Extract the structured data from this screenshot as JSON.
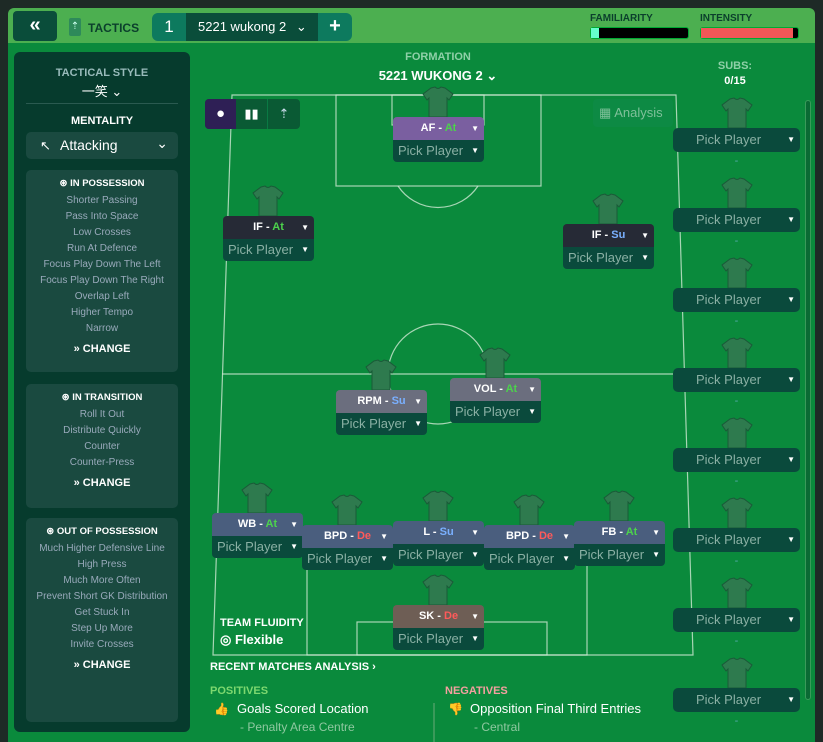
{
  "topbar": {
    "back_icon": "double-chevron-left-icon",
    "tactics_label": "TACTICS",
    "tab_number": "1",
    "tab_name": "5221 wukong 2",
    "add_label": "+",
    "familiarity_label": "FAMILIARITY",
    "intensity_label": "INTENSITY",
    "familiarity_level": 0.08,
    "intensity_level": 0.95,
    "familiarity_color": "#000000",
    "intensity_color": "#f25757"
  },
  "left": {
    "tactical_style_label": "TACTICAL STYLE",
    "tactical_style_value": "一笑",
    "mentality_label": "MENTALITY",
    "mentality_value": "Attacking",
    "sections": [
      {
        "title": "IN POSSESSION",
        "icon": "football-icon",
        "items": [
          "Shorter Passing",
          "Pass Into Space",
          "Low Crosses",
          "Run At Defence",
          "Focus Play Down The Left",
          "Focus Play Down The Right",
          "Overlap Left",
          "Higher Tempo",
          "Narrow"
        ],
        "change": "CHANGE"
      },
      {
        "title": "IN TRANSITION",
        "icon": "transition-icon",
        "items": [
          "Roll It Out",
          "Distribute Quickly",
          "Counter",
          "Counter-Press"
        ],
        "change": "CHANGE"
      },
      {
        "title": "OUT OF POSSESSION",
        "icon": "football-icon",
        "items": [
          "Much Higher Defensive Line",
          "High Press",
          "Much More Often",
          "Prevent Short GK Distribution",
          "Get Stuck In",
          "Step Up More",
          "Invite Crosses"
        ],
        "change": "CHANGE"
      }
    ]
  },
  "formation": {
    "label": "FORMATION",
    "name": "5221 WUKONG 2",
    "analysis_label": "Analysis"
  },
  "subs": {
    "label": "SUBS:",
    "count": "0/15",
    "pick_label": "Pick Player",
    "dash": "-",
    "rows": 8
  },
  "players": [
    {
      "role": "AF",
      "duty": "At",
      "pick": "Pick Player",
      "color": "#7a5fa0"
    },
    {
      "role": "IF",
      "duty": "At",
      "pick": "Pick Player",
      "color": "#262a36"
    },
    {
      "role": "IF",
      "duty": "Su",
      "pick": "Pick Player",
      "color": "#262a36"
    },
    {
      "role": "RPM",
      "duty": "Su",
      "pick": "Pick Player",
      "color": "#6b6e7e"
    },
    {
      "role": "VOL",
      "duty": "At",
      "pick": "Pick Player",
      "color": "#6b6e7e"
    },
    {
      "role": "WB",
      "duty": "At",
      "pick": "Pick Player",
      "color": "#4a5e7e"
    },
    {
      "role": "BPD",
      "duty": "De",
      "pick": "Pick Player",
      "color": "#4a5e7e"
    },
    {
      "role": "L",
      "duty": "Su",
      "pick": "Pick Player",
      "color": "#4a5e7e"
    },
    {
      "role": "BPD",
      "duty": "De",
      "pick": "Pick Player",
      "color": "#4a5e7e"
    },
    {
      "role": "FB",
      "duty": "At",
      "pick": "Pick Player",
      "color": "#4a5e7e"
    },
    {
      "role": "SK",
      "duty": "De",
      "pick": "Pick Player",
      "color": "#6e5e55"
    }
  ],
  "fluidity": {
    "label": "TEAM FLUIDITY",
    "value": "Flexible"
  },
  "analysis": {
    "title": "RECENT MATCHES ANALYSIS",
    "positives_label": "POSITIVES",
    "positive_item": "Goals Scored Location",
    "positive_detail": "- Penalty Area Centre",
    "negatives_label": "NEGATIVES",
    "negative_item": "Opposition Final Third Entries",
    "negative_detail": "- Central"
  }
}
